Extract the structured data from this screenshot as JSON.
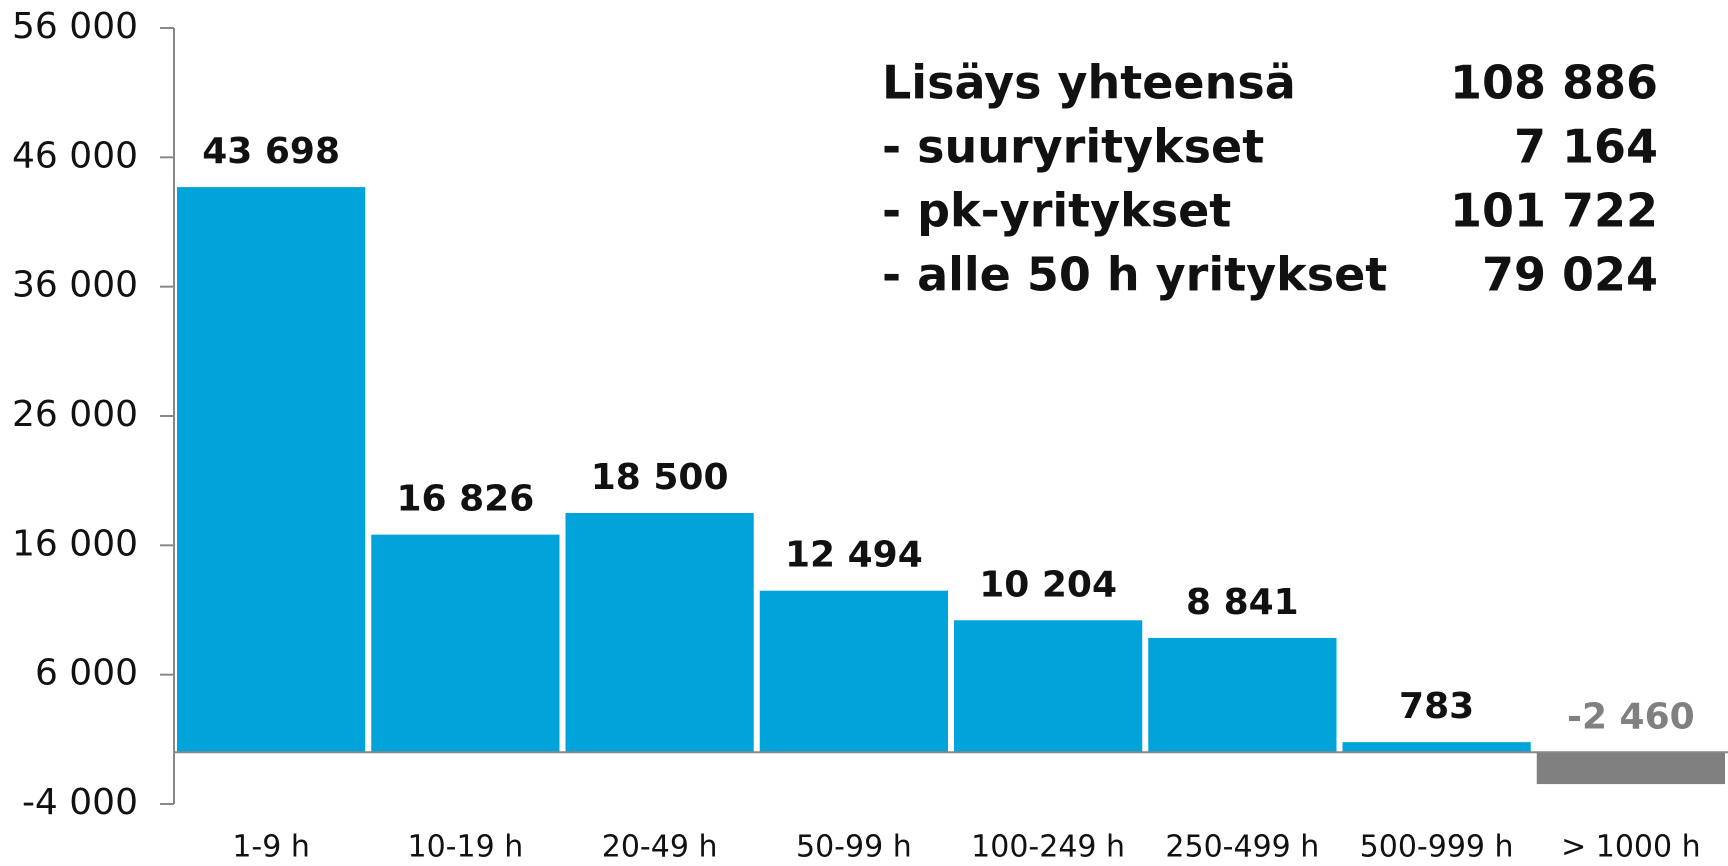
{
  "chart_data": {
    "type": "bar",
    "categories": [
      "1-9 h",
      "10-19 h",
      "20-49 h",
      "50-99 h",
      "100-249 h",
      "250-499 h",
      "500-999 h",
      "> 1000 h"
    ],
    "values": [
      43698,
      16826,
      18500,
      12494,
      10204,
      8841,
      783,
      -2460
    ],
    "value_labels": [
      "43 698",
      "16 826",
      "18 500",
      "12 494",
      "10 204",
      "8 841",
      "783",
      "-2 460"
    ],
    "colors": [
      "#00a3da",
      "#00a3da",
      "#00a3da",
      "#00a3da",
      "#00a3da",
      "#00a3da",
      "#00a3da",
      "#808080"
    ],
    "label_colors": [
      "#111111",
      "#111111",
      "#111111",
      "#111111",
      "#111111",
      "#111111",
      "#111111",
      "#808080"
    ],
    "ylim": [
      -4000,
      56000
    ],
    "yticks": [
      {
        "value": -4000,
        "label": "-4 000"
      },
      {
        "value": 6000,
        "label": "6 000"
      },
      {
        "value": 16000,
        "label": "16 000"
      },
      {
        "value": 26000,
        "label": "26 000"
      },
      {
        "value": 36000,
        "label": "36 000"
      },
      {
        "value": 46000,
        "label": "46 000"
      },
      {
        "value": 56000,
        "label": "56 000"
      }
    ],
    "summary": [
      [
        "Lisäys yhteensä",
        "108 886"
      ],
      [
        "- suuryritykset",
        "7 164"
      ],
      [
        "- pk-yritykset",
        "101 722"
      ],
      [
        "- alle 50 h yritykset",
        "79 024"
      ]
    ]
  }
}
